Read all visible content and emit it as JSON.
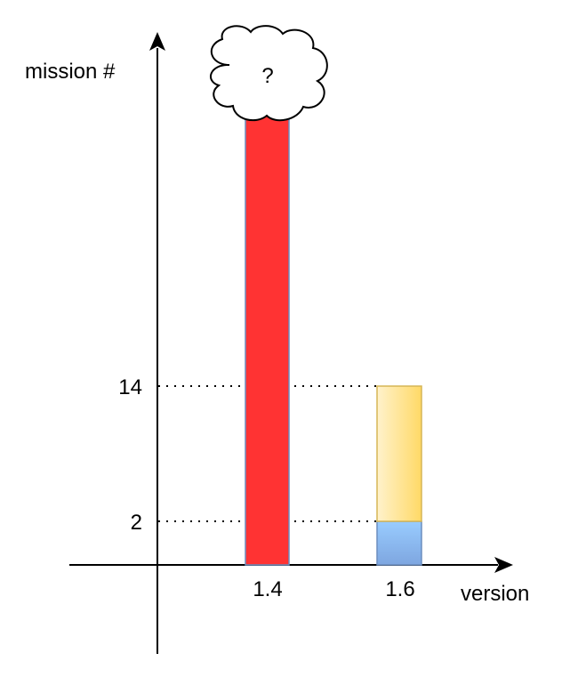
{
  "chart_data": {
    "type": "bar",
    "xlabel": "version",
    "ylabel": "mission #",
    "categories": [
      "1.4",
      "1.6"
    ],
    "bars": [
      {
        "category": "1.4",
        "segments": [
          {
            "from": 0,
            "to": null,
            "color": "#ff3333",
            "stroke": "#6c8ebf"
          }
        ],
        "unknown_top": true,
        "top_marker": "?"
      },
      {
        "category": "1.6",
        "segments": [
          {
            "from": 0,
            "to": 2,
            "color_top": "#99ccff",
            "color_bottom": "#7ea6e0",
            "stroke": "#6c8ebf"
          },
          {
            "from": 2,
            "to": 14,
            "color_left": "#fff2cc",
            "color_right": "#ffd966",
            "stroke": "#d6b656"
          }
        ]
      }
    ],
    "y_ticks": [
      {
        "value": 2,
        "label": "2"
      },
      {
        "value": 14,
        "label": "14"
      }
    ],
    "reference_lines": [
      2,
      14
    ],
    "reference_style": "dotted",
    "grid": false,
    "legend": "none"
  }
}
